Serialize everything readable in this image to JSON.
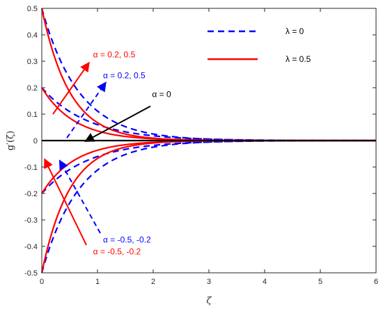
{
  "chart_data": {
    "type": "line",
    "xlabel": "ζ",
    "ylabel": "g′(ζ)",
    "xlim": [
      0,
      6
    ],
    "ylim": [
      -0.5,
      0.5
    ],
    "x_ticks": [
      0,
      1,
      2,
      3,
      4,
      5,
      6
    ],
    "y_ticks": [
      0.5,
      0.4,
      0.3,
      0.2,
      0.1,
      0,
      -0.1,
      -0.2,
      -0.3,
      -0.4,
      -0.5
    ],
    "y_tick_labels": [
      "0.5",
      "0.4",
      "0.3",
      "0.2",
      "0.1",
      "0",
      "-0.1",
      "-0.2",
      "-0.3",
      "-0.4",
      "-0.5"
    ],
    "grid": false,
    "legend_position": "top-right",
    "legend": [
      {
        "label": "λ = 0",
        "color": "#0000ff",
        "style": "dashed"
      },
      {
        "label": "λ = 0.5",
        "color": "#ff0000",
        "style": "solid"
      }
    ],
    "series": [
      {
        "color": "#0000ff",
        "style": "dashed",
        "g0": 0.5,
        "decay": 1.5
      },
      {
        "color": "#0000ff",
        "style": "dashed",
        "g0": 0.2,
        "decay": 1.2
      },
      {
        "color": "#0000ff",
        "style": "dashed",
        "g0": -0.2,
        "decay": 1.2
      },
      {
        "color": "#0000ff",
        "style": "dashed",
        "g0": -0.5,
        "decay": 1.5
      },
      {
        "color": "#ff0000",
        "style": "solid",
        "g0": 0.5,
        "decay": 2.0
      },
      {
        "color": "#ff0000",
        "style": "solid",
        "g0": 0.2,
        "decay": 1.7
      },
      {
        "color": "#ff0000",
        "style": "solid",
        "g0": -0.2,
        "decay": 1.7
      },
      {
        "color": "#ff0000",
        "style": "solid",
        "g0": -0.5,
        "decay": 2.0
      },
      {
        "color": "#000000",
        "style": "solid",
        "g0": 0,
        "decay": 1.0
      }
    ],
    "annotations": [
      {
        "text": "α = 0.2, 0.5",
        "color": "#ff0000",
        "text_at": [
          0.92,
          0.315
        ],
        "arrow_from": [
          0.2,
          0.1
        ],
        "arrow_to": [
          0.85,
          0.295
        ],
        "arrow_style": "solid"
      },
      {
        "text": "α = 0.2, 0.5",
        "color": "#0000ff",
        "text_at": [
          1.1,
          0.235
        ],
        "arrow_from": [
          0.45,
          0.01
        ],
        "arrow_to": [
          1.15,
          0.22
        ],
        "arrow_style": "dashed"
      },
      {
        "text": "α = 0",
        "color": "#000000",
        "text_at": [
          1.98,
          0.165
        ],
        "arrow_from": [
          1.95,
          0.13
        ],
        "arrow_to": [
          0.78,
          -0.003
        ],
        "arrow_style": "solid"
      },
      {
        "text": "α = -0.5, -0.2",
        "color": "#0000ff",
        "text_at": [
          1.1,
          -0.385
        ],
        "arrow_from": [
          1.05,
          -0.35
        ],
        "arrow_to": [
          0.32,
          -0.075
        ],
        "arrow_style": "dashed"
      },
      {
        "text": "α = -0.5, -0.2",
        "color": "#ff0000",
        "text_at": [
          0.92,
          -0.43
        ],
        "arrow_from": [
          0.8,
          -0.395
        ],
        "arrow_to": [
          0.05,
          -0.07
        ],
        "arrow_style": "solid"
      }
    ]
  }
}
